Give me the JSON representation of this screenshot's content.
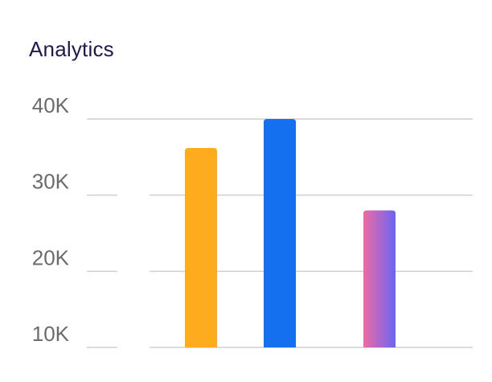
{
  "header": {
    "title": "Analytics"
  },
  "chart_data": {
    "type": "bar",
    "title": "Analytics",
    "xlabel": "",
    "ylabel": "",
    "ylim": [
      10000,
      40000
    ],
    "yticks": [
      {
        "value": 10000,
        "label": "10K"
      },
      {
        "value": 20000,
        "label": "20K"
      },
      {
        "value": 30000,
        "label": "30K"
      },
      {
        "value": 40000,
        "label": "40K"
      }
    ],
    "categories": [
      "",
      "",
      ""
    ],
    "values": [
      36200,
      40000,
      28000
    ],
    "bar_colors": [
      "#FEAC1D",
      "#1570EF",
      "gradient:#EE6BA6-#6A65F3"
    ],
    "grid": true,
    "legend": "none"
  },
  "colors": {
    "title": "#1C1B4D",
    "gridline": "#CFCFCF",
    "tick_label": "#6B6B6B"
  }
}
